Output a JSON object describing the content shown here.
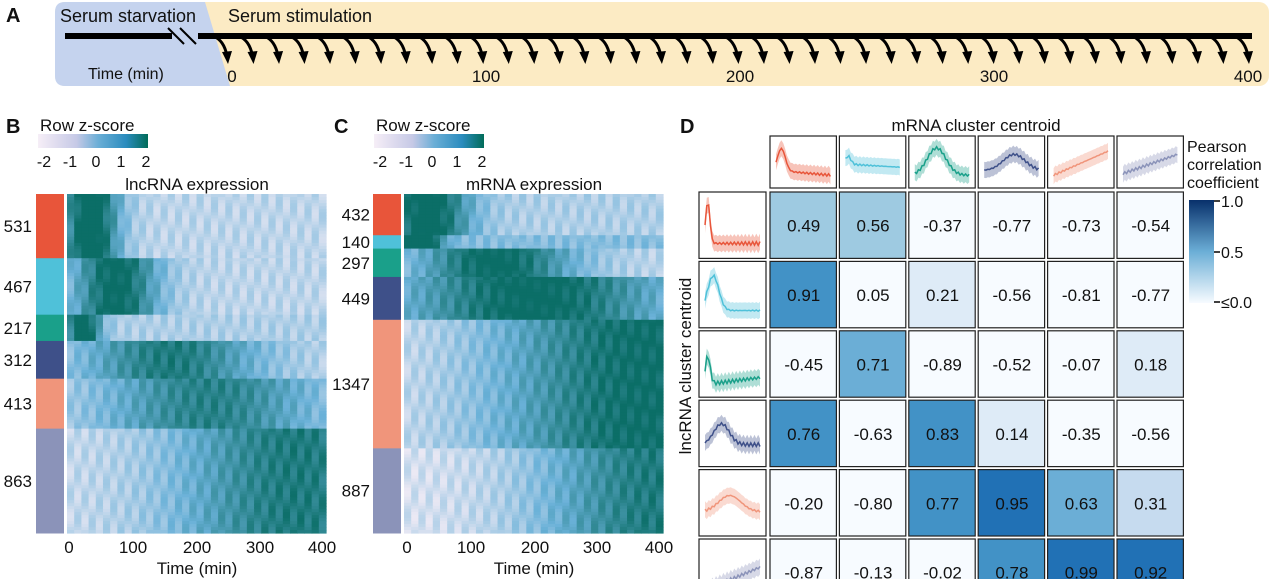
{
  "panels": {
    "A": "A",
    "B": "B",
    "C": "C",
    "D": "D"
  },
  "timeline": {
    "starvation_label": "Serum starvation",
    "stimulation_label": "Serum stimulation",
    "time_label": "Time (min)",
    "ticks": [
      "0",
      "100",
      "200",
      "300",
      "400"
    ]
  },
  "colorbar": {
    "title": "Row z-score",
    "ticks": [
      "-2",
      "-1",
      "0",
      "1",
      "2"
    ]
  },
  "heatmap_B": {
    "title": "lncRNA expression",
    "xlabel": "Time (min)",
    "xticks": [
      "0",
      "100",
      "200",
      "300",
      "400"
    ],
    "cluster_counts": [
      "531",
      "467",
      "217",
      "312",
      "413",
      "863"
    ]
  },
  "heatmap_C": {
    "title": "mRNA expression",
    "xlabel": "Time (min)",
    "xticks": [
      "0",
      "100",
      "200",
      "300",
      "400"
    ],
    "cluster_counts": [
      "432",
      "140",
      "297",
      "449",
      "1347",
      "887"
    ]
  },
  "cluster_colors": [
    "#e8553a",
    "#4fc1d9",
    "#1aa08a",
    "#3e5089",
    "#f0957b",
    "#8b93b9"
  ],
  "heatmap_colors": {
    "low": "#f3ecf6",
    "mid": "#6ab1d8",
    "high": "#0b6e67"
  },
  "correlation": {
    "col_title": "mRNA cluster centroid",
    "row_title": "lncRNA cluster centroid",
    "legend_title": [
      "Pearson",
      "correlation",
      "coefficient"
    ],
    "legend_ticks": [
      "1.0",
      "0.5",
      "≤0.0"
    ],
    "matrix": [
      [
        "0.49",
        "0.56",
        "-0.37",
        "-0.77",
        "-0.73",
        "-0.54"
      ],
      [
        "0.91",
        "0.05",
        "0.21",
        "-0.56",
        "-0.81",
        "-0.77"
      ],
      [
        "-0.45",
        "0.71",
        "-0.89",
        "-0.52",
        "-0.07",
        "0.18"
      ],
      [
        "0.76",
        "-0.63",
        "0.83",
        "0.14",
        "-0.35",
        "-0.56"
      ],
      [
        "-0.20",
        "-0.80",
        "0.77",
        "0.95",
        "0.63",
        "0.31"
      ],
      [
        "-0.87",
        "-0.13",
        "-0.02",
        "0.78",
        "0.99",
        "0.92"
      ]
    ]
  }
}
